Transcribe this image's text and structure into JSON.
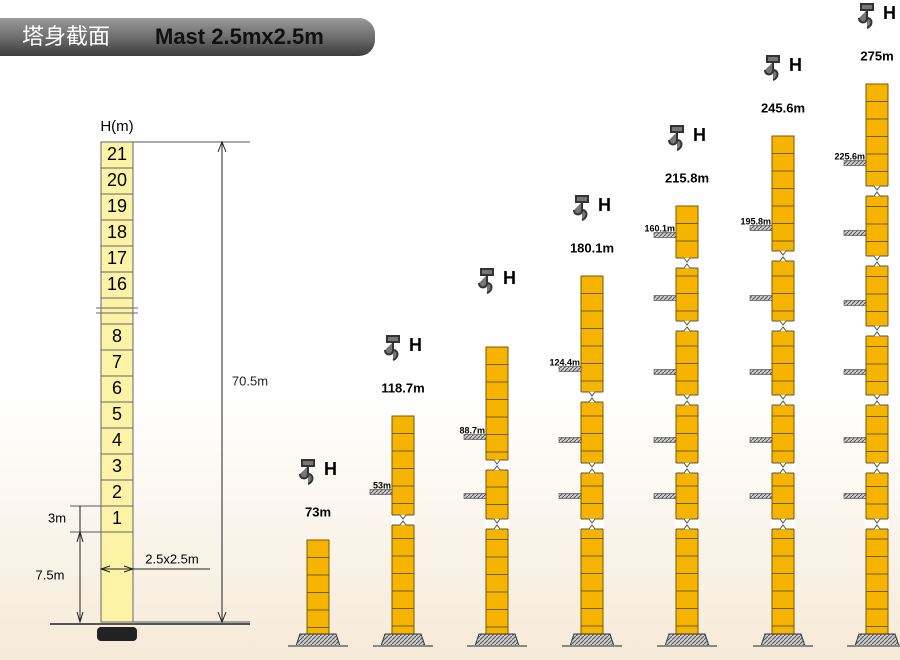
{
  "header": {
    "title_cn": "塔身截面",
    "title": "Mast 2.5mx2.5m"
  },
  "mast": {
    "axis_label": "H(m)",
    "sections_top": [
      "21",
      "20",
      "19",
      "18",
      "17",
      "16"
    ],
    "sections_bottom": [
      "8",
      "7",
      "6",
      "5",
      "4",
      "3",
      "2",
      "1"
    ],
    "total_height": "70.5m",
    "section_height": "3m",
    "base_height": "7.5m",
    "section_size": "2.5x2.5m"
  },
  "towers": [
    {
      "hook": "H",
      "height": "73m"
    },
    {
      "hook": "H",
      "height": "118.7m",
      "tie": "53m"
    },
    {
      "hook": "H",
      "tie": "88.7m"
    },
    {
      "hook": "H",
      "height": "180.1m",
      "tie": "124.4m"
    },
    {
      "hook": "H",
      "height": "215.8m",
      "tie": "160.1m"
    },
    {
      "hook": "H",
      "height": "245.6m",
      "tie": "195.8m"
    },
    {
      "hook": "H",
      "height": "275m",
      "tie": "225.6m"
    }
  ]
}
